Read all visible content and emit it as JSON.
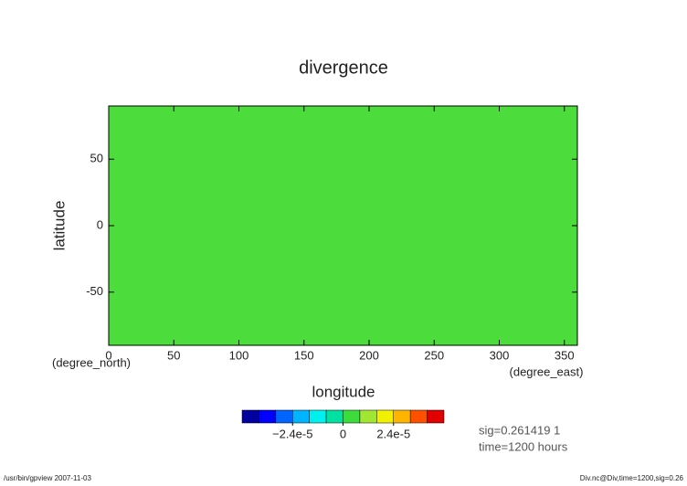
{
  "chart_data": {
    "type": "contour",
    "title": "divergence",
    "x_label": "longitude",
    "y_label": "latitude",
    "x_unit": "(degree_east)",
    "y_unit": "(degree_north)",
    "xlim": [
      0,
      360
    ],
    "xticks": [
      0,
      50,
      100,
      150,
      200,
      250,
      300,
      350
    ],
    "ylim": [
      -90,
      90
    ],
    "yticks": [
      -50,
      0,
      50
    ],
    "field_color": "#4cdc3c",
    "colorbar": {
      "levels": [
        -4.8e-05,
        -4e-05,
        -3.2e-05,
        -2.4e-05,
        -1.6e-05,
        -8e-06,
        0,
        8e-06,
        1.6e-05,
        2.4e-05,
        3.2e-05,
        4e-05,
        4.8e-05
      ],
      "colors": [
        "#0000a0",
        "#0000ff",
        "#0064ff",
        "#00b4ff",
        "#00f0f0",
        "#00e0a0",
        "#3cdc3c",
        "#a0e632",
        "#f0f000",
        "#ffb400",
        "#ff5000",
        "#e00000",
        "#f0a0a0"
      ],
      "ticks": [
        {
          "value": -2.4e-05,
          "label": "−2.4e-5"
        },
        0,
        {
          "value": 2.4e-05,
          "label": "2.4e-5"
        }
      ]
    },
    "annotations": [
      "sig=0.261419 1",
      "time=1200 hours"
    ],
    "footer_left": "/usr/bin/gpview  2007-11-03",
    "footer_right": "Div.nc@Div,time=1200,sig=0.26"
  }
}
